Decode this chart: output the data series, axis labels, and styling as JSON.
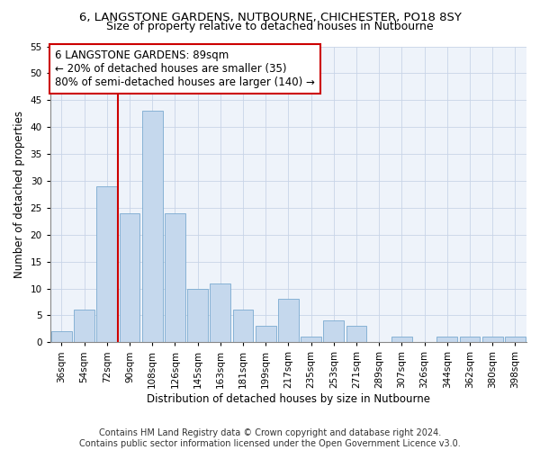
{
  "title": "6, LANGSTONE GARDENS, NUTBOURNE, CHICHESTER, PO18 8SY",
  "subtitle": "Size of property relative to detached houses in Nutbourne",
  "xlabel": "Distribution of detached houses by size in Nutbourne",
  "ylabel": "Number of detached properties",
  "bar_labels": [
    "36sqm",
    "54sqm",
    "72sqm",
    "90sqm",
    "108sqm",
    "126sqm",
    "145sqm",
    "163sqm",
    "181sqm",
    "199sqm",
    "217sqm",
    "235sqm",
    "253sqm",
    "271sqm",
    "289sqm",
    "307sqm",
    "326sqm",
    "344sqm",
    "362sqm",
    "380sqm",
    "398sqm"
  ],
  "bar_values": [
    2,
    6,
    29,
    24,
    43,
    24,
    10,
    11,
    6,
    3,
    8,
    1,
    4,
    3,
    0,
    1,
    0,
    1,
    1,
    1,
    1
  ],
  "bar_color": "#c5d8ed",
  "bar_edgecolor": "#7aaad0",
  "vline_color": "#cc0000",
  "annotation_text": "6 LANGSTONE GARDENS: 89sqm\n← 20% of detached houses are smaller (35)\n80% of semi-detached houses are larger (140) →",
  "annotation_box_edgecolor": "#cc0000",
  "ylim": [
    0,
    55
  ],
  "yticks": [
    0,
    5,
    10,
    15,
    20,
    25,
    30,
    35,
    40,
    45,
    50,
    55
  ],
  "footer_line1": "Contains HM Land Registry data © Crown copyright and database right 2024.",
  "footer_line2": "Contains public sector information licensed under the Open Government Licence v3.0.",
  "background_color": "#ffffff",
  "plot_background": "#eef3fa",
  "grid_color": "#c8d4e8",
  "title_fontsize": 9.5,
  "subtitle_fontsize": 9,
  "axis_label_fontsize": 8.5,
  "tick_fontsize": 7.5,
  "annotation_fontsize": 8.5,
  "footer_fontsize": 7
}
